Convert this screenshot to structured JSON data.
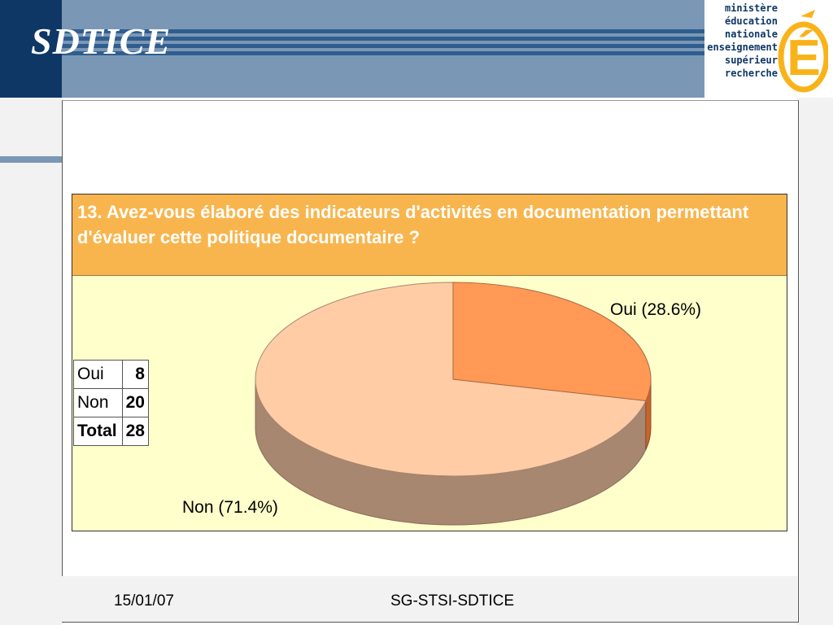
{
  "header": {
    "title": "SDTICE"
  },
  "logo": {
    "lines": [
      "ministère",
      "éducation",
      "nationale",
      "enseignement",
      "supérieur",
      "recherche"
    ],
    "letter": "É",
    "color": "#f9b31a"
  },
  "question": "13. Avez-vous élaboré des indicateurs d'activités en documentation permettant d'évaluer cette politique documentaire ?",
  "table": {
    "rows": [
      {
        "label": "Oui",
        "value": "8"
      },
      {
        "label": "Non",
        "value": "20"
      }
    ],
    "total": {
      "label": "Total",
      "value": "28"
    }
  },
  "chart_data": {
    "type": "pie",
    "title": "",
    "slices": [
      {
        "name": "Oui",
        "value": 8,
        "percent": 28.6,
        "label": "Oui (28.6%)",
        "color": "#ff9955"
      },
      {
        "name": "Non",
        "value": 20,
        "percent": 71.4,
        "label": "Non (71.4%)",
        "color": "#ffcca6"
      }
    ],
    "style": "3d"
  },
  "footer": {
    "date": "15/01/07",
    "organization": "SG-STSI-SDTICE"
  }
}
